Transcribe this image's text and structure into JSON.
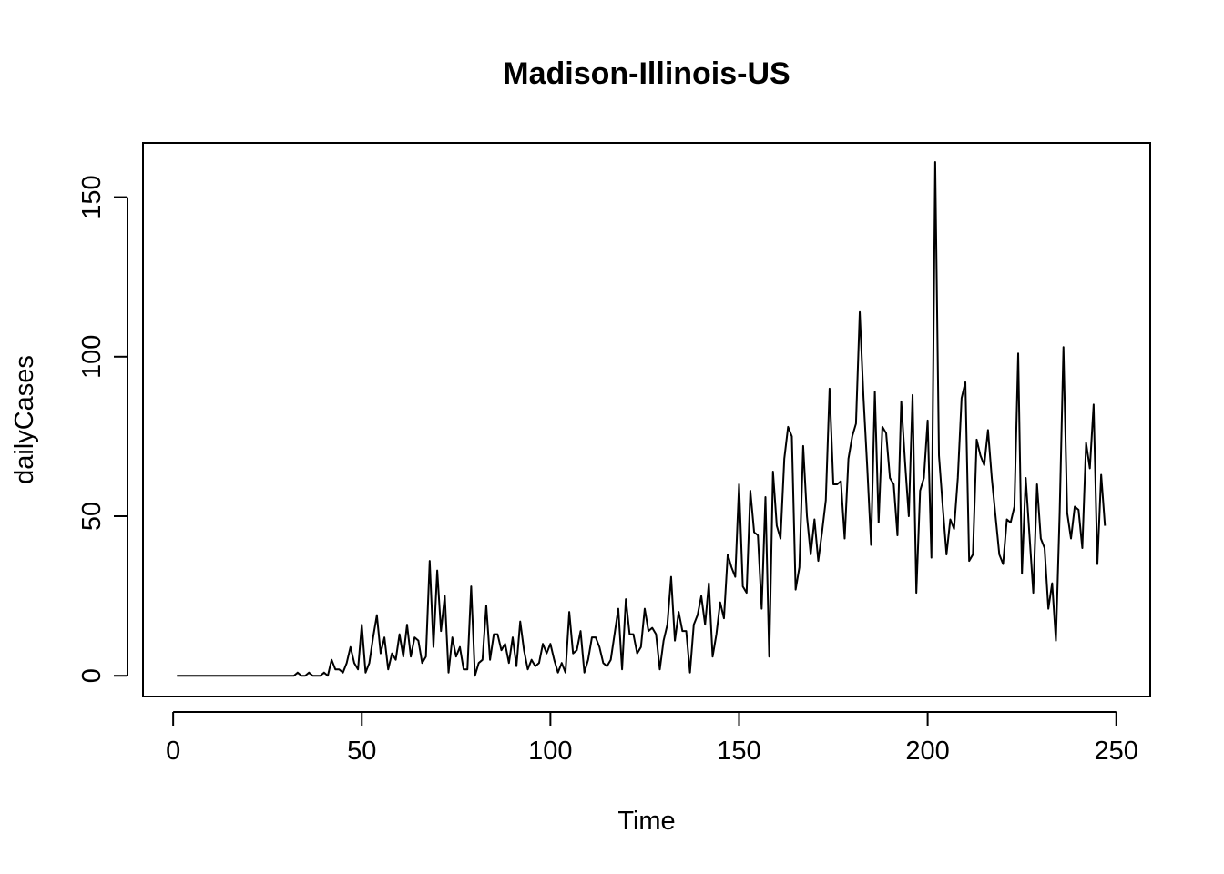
{
  "chart_data": {
    "type": "line",
    "title": "Madison-Illinois-US",
    "xlabel": "Time",
    "ylabel": "dailyCases",
    "xlim": [
      -8,
      259
    ],
    "ylim": [
      -6.5,
      167
    ],
    "xticks": [
      0,
      50,
      100,
      150,
      200,
      250
    ],
    "yticks": [
      0,
      50,
      100,
      150
    ],
    "grid": false,
    "legend": "none",
    "line_color": "#000000",
    "series": [
      {
        "x_start": 1,
        "values": [
          0,
          0,
          0,
          0,
          0,
          0,
          0,
          0,
          0,
          0,
          0,
          0,
          0,
          0,
          0,
          0,
          0,
          0,
          0,
          0,
          0,
          0,
          0,
          0,
          0,
          0,
          0,
          0,
          0,
          0,
          0,
          0,
          1,
          0,
          0,
          1,
          0,
          0,
          0,
          1,
          0,
          5,
          2,
          2,
          1,
          4,
          9,
          4,
          2,
          16,
          1,
          4,
          12,
          19,
          7,
          12,
          2,
          7,
          5,
          13,
          6,
          16,
          6,
          12,
          11,
          4,
          6,
          36,
          9,
          33,
          14,
          25,
          1,
          12,
          6,
          9,
          2,
          2,
          28,
          0,
          4,
          5,
          22,
          5,
          13,
          13,
          8,
          10,
          4,
          12,
          3,
          17,
          8,
          2,
          5,
          3,
          4,
          10,
          7,
          10,
          5,
          1,
          4,
          1,
          20,
          7,
          8,
          14,
          1,
          5,
          12,
          12,
          9,
          4,
          3,
          5,
          13,
          21,
          2,
          24,
          13,
          13,
          7,
          9,
          21,
          14,
          15,
          13,
          2,
          11,
          16,
          31,
          11,
          20,
          14,
          14,
          1,
          16,
          19,
          25,
          16,
          29,
          6,
          13,
          23,
          18,
          38,
          34,
          31,
          60,
          28,
          26,
          58,
          45,
          44,
          21,
          56,
          6,
          64,
          47,
          43,
          68,
          78,
          75,
          27,
          34,
          72,
          50,
          38,
          49,
          36,
          45,
          55,
          90,
          60,
          60,
          61,
          43,
          68,
          75,
          79,
          114,
          87,
          65,
          41,
          89,
          48,
          78,
          76,
          62,
          60,
          44,
          86,
          67,
          50,
          88,
          26,
          58,
          62,
          80,
          37,
          161,
          69,
          53,
          38,
          49,
          46,
          62,
          87,
          92,
          36,
          38,
          74,
          69,
          66,
          77,
          62,
          50,
          38,
          35,
          49,
          48,
          53,
          101,
          32,
          62,
          44,
          26,
          60,
          43,
          40,
          21,
          29,
          11,
          51,
          103,
          51,
          43,
          53,
          52,
          40,
          73,
          65,
          85,
          35,
          63,
          47
        ]
      }
    ]
  }
}
